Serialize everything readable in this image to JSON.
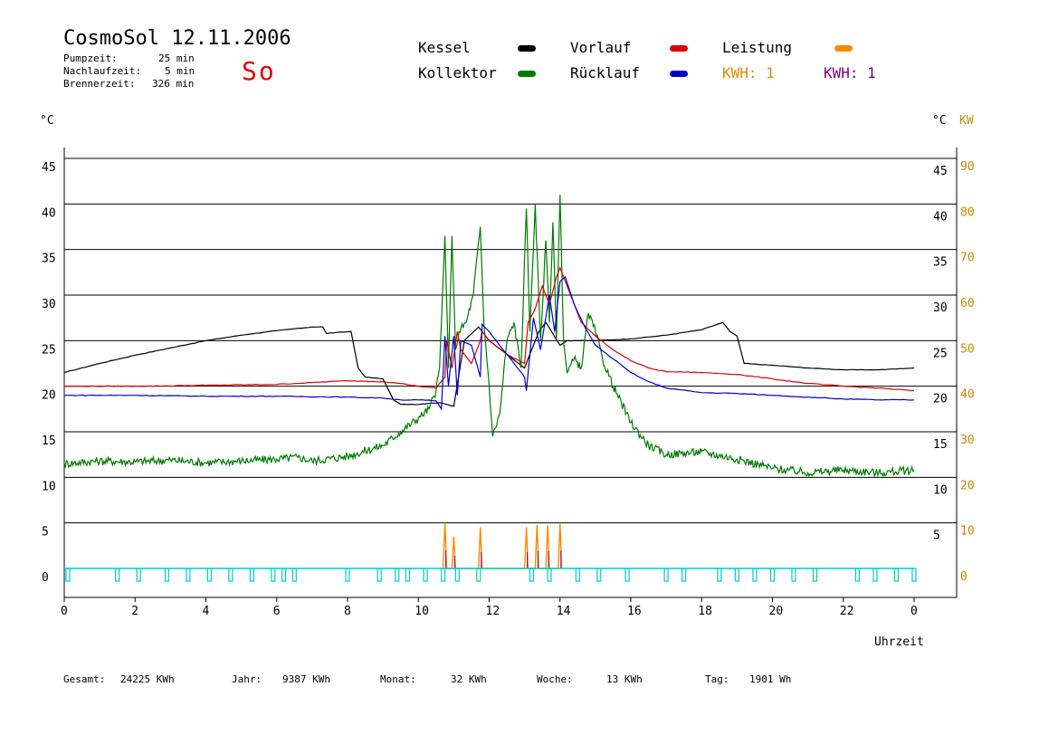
{
  "header": {
    "title": "CosmoSol 12.11.2006",
    "pumpzeit_label": "Pumpzeit:",
    "pumpzeit_value": "25 min",
    "nachlaufzeit_label": "Nachlaufzeit:",
    "nachlaufzeit_value": "5 min",
    "brennerzeit_label": "Brennerzeit:",
    "brennerzeit_value": "326 min",
    "day": "So"
  },
  "legend": {
    "kessel": "Kessel",
    "kollektor": "Kollektor",
    "vorlauf": "Vorlauf",
    "ruecklauf": "Rücklauf",
    "leistung": "Leistung",
    "kwh_orange": "KWH: 1",
    "kwh_purple": "KWH: 1"
  },
  "axis_units": {
    "left": "°C",
    "right_temp": "°C",
    "right_power": "KW",
    "x": "Uhrzeit"
  },
  "footer": {
    "gesamt_label": "Gesamt:",
    "gesamt_value": "24225 KWh",
    "jahr_label": "Jahr:",
    "jahr_value": "9387 KWh",
    "monat_label": "Monat:",
    "monat_value": "32 KWh",
    "woche_label": "Woche:",
    "woche_value": "13 KWh",
    "tag_label": "Tag:",
    "tag_value": "1901 Wh"
  },
  "colors": {
    "kessel": "#000000",
    "kollektor": "#007a00",
    "vorlauf": "#dd0000",
    "ruecklauf": "#0000cc",
    "leistung": "#ff8800",
    "kwh_purple": "#800080",
    "pump": "#00cccc",
    "grid": "#000000",
    "right_power_axis": "#cc8800"
  },
  "chart_data": {
    "type": "line",
    "xlabel": "Uhrzeit",
    "ylabel": "°C",
    "y2label": "KW",
    "xlim": [
      0,
      24
    ],
    "ylim": [
      0,
      45
    ],
    "y2lim": [
      0,
      90
    ],
    "x_ticks": [
      "0",
      "2",
      "4",
      "6",
      "8",
      "10",
      "12",
      "14",
      "16",
      "18",
      "20",
      "22",
      "0"
    ],
    "y_ticks_left": [
      "0",
      "5",
      "10",
      "15",
      "20",
      "25",
      "30",
      "35",
      "40",
      "45"
    ],
    "y_ticks_right_temp": [
      "5",
      "10",
      "15",
      "20",
      "25",
      "30",
      "35",
      "40",
      "45"
    ],
    "y_ticks_right_power": [
      "0",
      "10",
      "20",
      "30",
      "40",
      "50",
      "60",
      "70",
      "80",
      "90"
    ],
    "grid": true,
    "series": [
      {
        "name": "Kessel",
        "color": "#000000",
        "x": [
          0,
          1,
          2,
          3,
          4,
          5,
          6,
          7,
          7.3,
          7.4,
          8.1,
          8.3,
          8.5,
          9.0,
          9.3,
          9.5,
          10.0,
          10.6,
          10.8,
          11.0,
          11.3,
          11.7,
          12.0,
          12.5,
          13.0,
          13.2,
          13.4,
          13.6,
          14.0,
          14.2,
          15,
          16,
          17,
          18,
          18.6,
          18.8,
          19.0,
          19.2,
          20,
          21,
          22,
          23,
          24
        ],
        "y": [
          21.5,
          22.5,
          23.4,
          24.2,
          25.0,
          25.6,
          26.1,
          26.5,
          26.5,
          25.8,
          26.0,
          22.0,
          21.0,
          20.8,
          18.5,
          18.0,
          18.0,
          18.2,
          18.0,
          17.8,
          25.0,
          26.5,
          25.0,
          23.5,
          22.0,
          24.0,
          26.0,
          27.0,
          24.5,
          25.0,
          25.0,
          25.2,
          25.6,
          26.2,
          27.0,
          26.0,
          25.5,
          22.5,
          22.3,
          22.0,
          21.8,
          21.8,
          22.0
        ]
      },
      {
        "name": "Kollektor",
        "color": "#007a00",
        "x": [
          0,
          1,
          2,
          3,
          4,
          5,
          6,
          6.6,
          7,
          8,
          9,
          9.5,
          10,
          10.3,
          10.5,
          10.6,
          10.75,
          10.85,
          10.95,
          11.05,
          11.15,
          11.35,
          11.55,
          11.75,
          11.85,
          12.0,
          12.1,
          12.3,
          12.5,
          12.7,
          12.9,
          13.05,
          13.15,
          13.3,
          13.45,
          13.6,
          13.7,
          13.8,
          13.9,
          14.0,
          14.1,
          14.2,
          14.4,
          14.6,
          14.8,
          15.0,
          15.2,
          15.5,
          16,
          16.5,
          17,
          18,
          19,
          20,
          21,
          22,
          23,
          24
        ],
        "y": [
          11.5,
          11.8,
          11.7,
          11.9,
          11.6,
          11.8,
          12.0,
          12.2,
          11.8,
          12.3,
          13.5,
          15.0,
          16.5,
          17.5,
          19.5,
          22.0,
          36.5,
          22.0,
          36.5,
          24.0,
          26.0,
          27.0,
          30.0,
          37.5,
          27.0,
          20.0,
          14.5,
          17.0,
          25.0,
          27.0,
          22.0,
          39.5,
          26.0,
          40.0,
          25.0,
          36.0,
          27.0,
          38.0,
          25.0,
          41.0,
          25.0,
          21.5,
          23.0,
          22.0,
          28.0,
          26.0,
          23.0,
          20.0,
          16.0,
          13.5,
          12.5,
          12.8,
          12.0,
          11.0,
          10.5,
          10.8,
          10.5,
          10.8
        ]
      },
      {
        "name": "Vorlauf",
        "color": "#dd0000",
        "x": [
          0,
          2,
          4,
          6,
          7,
          8,
          9,
          9.5,
          10,
          10.5,
          10.75,
          10.8,
          10.95,
          11.1,
          11.2,
          11.5,
          11.75,
          11.8,
          12.0,
          12.5,
          13.0,
          13.1,
          13.3,
          13.5,
          13.7,
          13.9,
          14.0,
          14.3,
          14.6,
          15,
          15.5,
          16,
          16.5,
          17,
          18,
          19,
          20,
          21,
          22,
          23,
          24
        ],
        "y": [
          20.0,
          20.0,
          20.1,
          20.2,
          20.4,
          20.6,
          20.5,
          20.3,
          20.0,
          19.8,
          21.0,
          25.0,
          22.0,
          26.0,
          24.0,
          22.5,
          25.0,
          26.0,
          25.0,
          23.5,
          22.5,
          27.0,
          28.5,
          31.0,
          29.0,
          32.0,
          33.0,
          30.0,
          27.0,
          25.5,
          24.0,
          22.8,
          22.0,
          21.6,
          21.5,
          21.3,
          20.8,
          20.3,
          20.0,
          19.8,
          19.5
        ]
      },
      {
        "name": "Rücklauf",
        "color": "#0000cc",
        "x": [
          0,
          2,
          4,
          6,
          8,
          9,
          9.5,
          10,
          10.5,
          10.65,
          10.75,
          10.85,
          11.0,
          11.1,
          11.2,
          11.5,
          11.75,
          11.8,
          12.0,
          12.5,
          13.0,
          13.05,
          13.25,
          13.45,
          13.7,
          13.85,
          14.0,
          14.15,
          14.4,
          14.7,
          15,
          15.5,
          16,
          16.5,
          17,
          18,
          19,
          20,
          21,
          22,
          23,
          24
        ],
        "y": [
          19.0,
          19.0,
          18.9,
          18.9,
          18.8,
          18.7,
          18.5,
          18.5,
          18.4,
          17.5,
          25.5,
          20.0,
          25.5,
          19.0,
          25.0,
          24.5,
          21.0,
          26.8,
          26.0,
          23.5,
          21.0,
          19.5,
          27.5,
          24.0,
          30.0,
          26.0,
          31.5,
          32.0,
          29.0,
          26.5,
          24.5,
          23.0,
          21.5,
          20.5,
          19.8,
          19.3,
          19.2,
          19.0,
          18.8,
          18.6,
          18.5,
          18.5
        ]
      }
    ],
    "leistung_kw": {
      "name": "Leistung",
      "color": "#ff8800",
      "x": [
        10.7,
        10.75,
        10.8,
        10.95,
        11.0,
        11.05,
        11.7,
        11.75,
        11.8,
        13.0,
        13.05,
        13.1,
        13.3,
        13.35,
        13.4,
        13.6,
        13.65,
        13.7,
        13.95,
        14.0,
        14.05
      ],
      "y": [
        0,
        10,
        0,
        0,
        7,
        0,
        0,
        9,
        0,
        0,
        9,
        0,
        0,
        9.5,
        0,
        0,
        9.5,
        0,
        0,
        9.8,
        0
      ]
    },
    "pump_cycles_hours": [
      0.1,
      1.5,
      2.1,
      2.9,
      3.5,
      4.1,
      4.7,
      5.3,
      5.9,
      6.2,
      6.5,
      8.0,
      8.9,
      9.4,
      9.7,
      10.2,
      10.7,
      11.1,
      11.7,
      13.2,
      13.7,
      14.5,
      15.1,
      15.9,
      17.0,
      17.5,
      18.5,
      19.0,
      19.5,
      20.0,
      20.6,
      21.2,
      22.4,
      22.9,
      23.5,
      24.0
    ]
  }
}
